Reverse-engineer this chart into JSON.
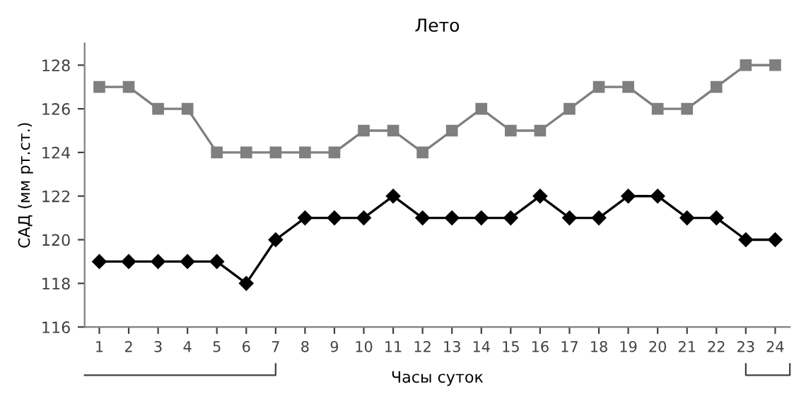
{
  "chart_data": {
    "type": "line",
    "title": "Лето",
    "xlabel": "Часы суток",
    "ylabel": "САД (мм рт.ст.)",
    "categories": [
      "1",
      "2",
      "3",
      "4",
      "5",
      "6",
      "7",
      "8",
      "9",
      "10",
      "11",
      "12",
      "13",
      "14",
      "15",
      "16",
      "17",
      "18",
      "19",
      "20",
      "21",
      "22",
      "23",
      "24"
    ],
    "series": [
      {
        "color": "#7f7f7f",
        "marker": "square",
        "values": [
          127,
          127,
          126,
          126,
          124,
          124,
          124,
          124,
          124,
          125,
          125,
          124,
          125,
          126,
          125,
          125,
          126,
          127,
          127,
          126,
          126,
          127,
          128,
          128
        ]
      },
      {
        "color": "#000000",
        "marker": "diamond",
        "values": [
          119,
          119,
          119,
          119,
          119,
          118,
          120,
          121,
          121,
          121,
          122,
          121,
          121,
          121,
          121,
          122,
          121,
          121,
          122,
          122,
          121,
          121,
          120,
          120
        ]
      }
    ],
    "ylim": [
      116,
      129
    ],
    "yticks": [
      116,
      118,
      120,
      122,
      124,
      126,
      128
    ],
    "grid": false,
    "legend": false
  }
}
